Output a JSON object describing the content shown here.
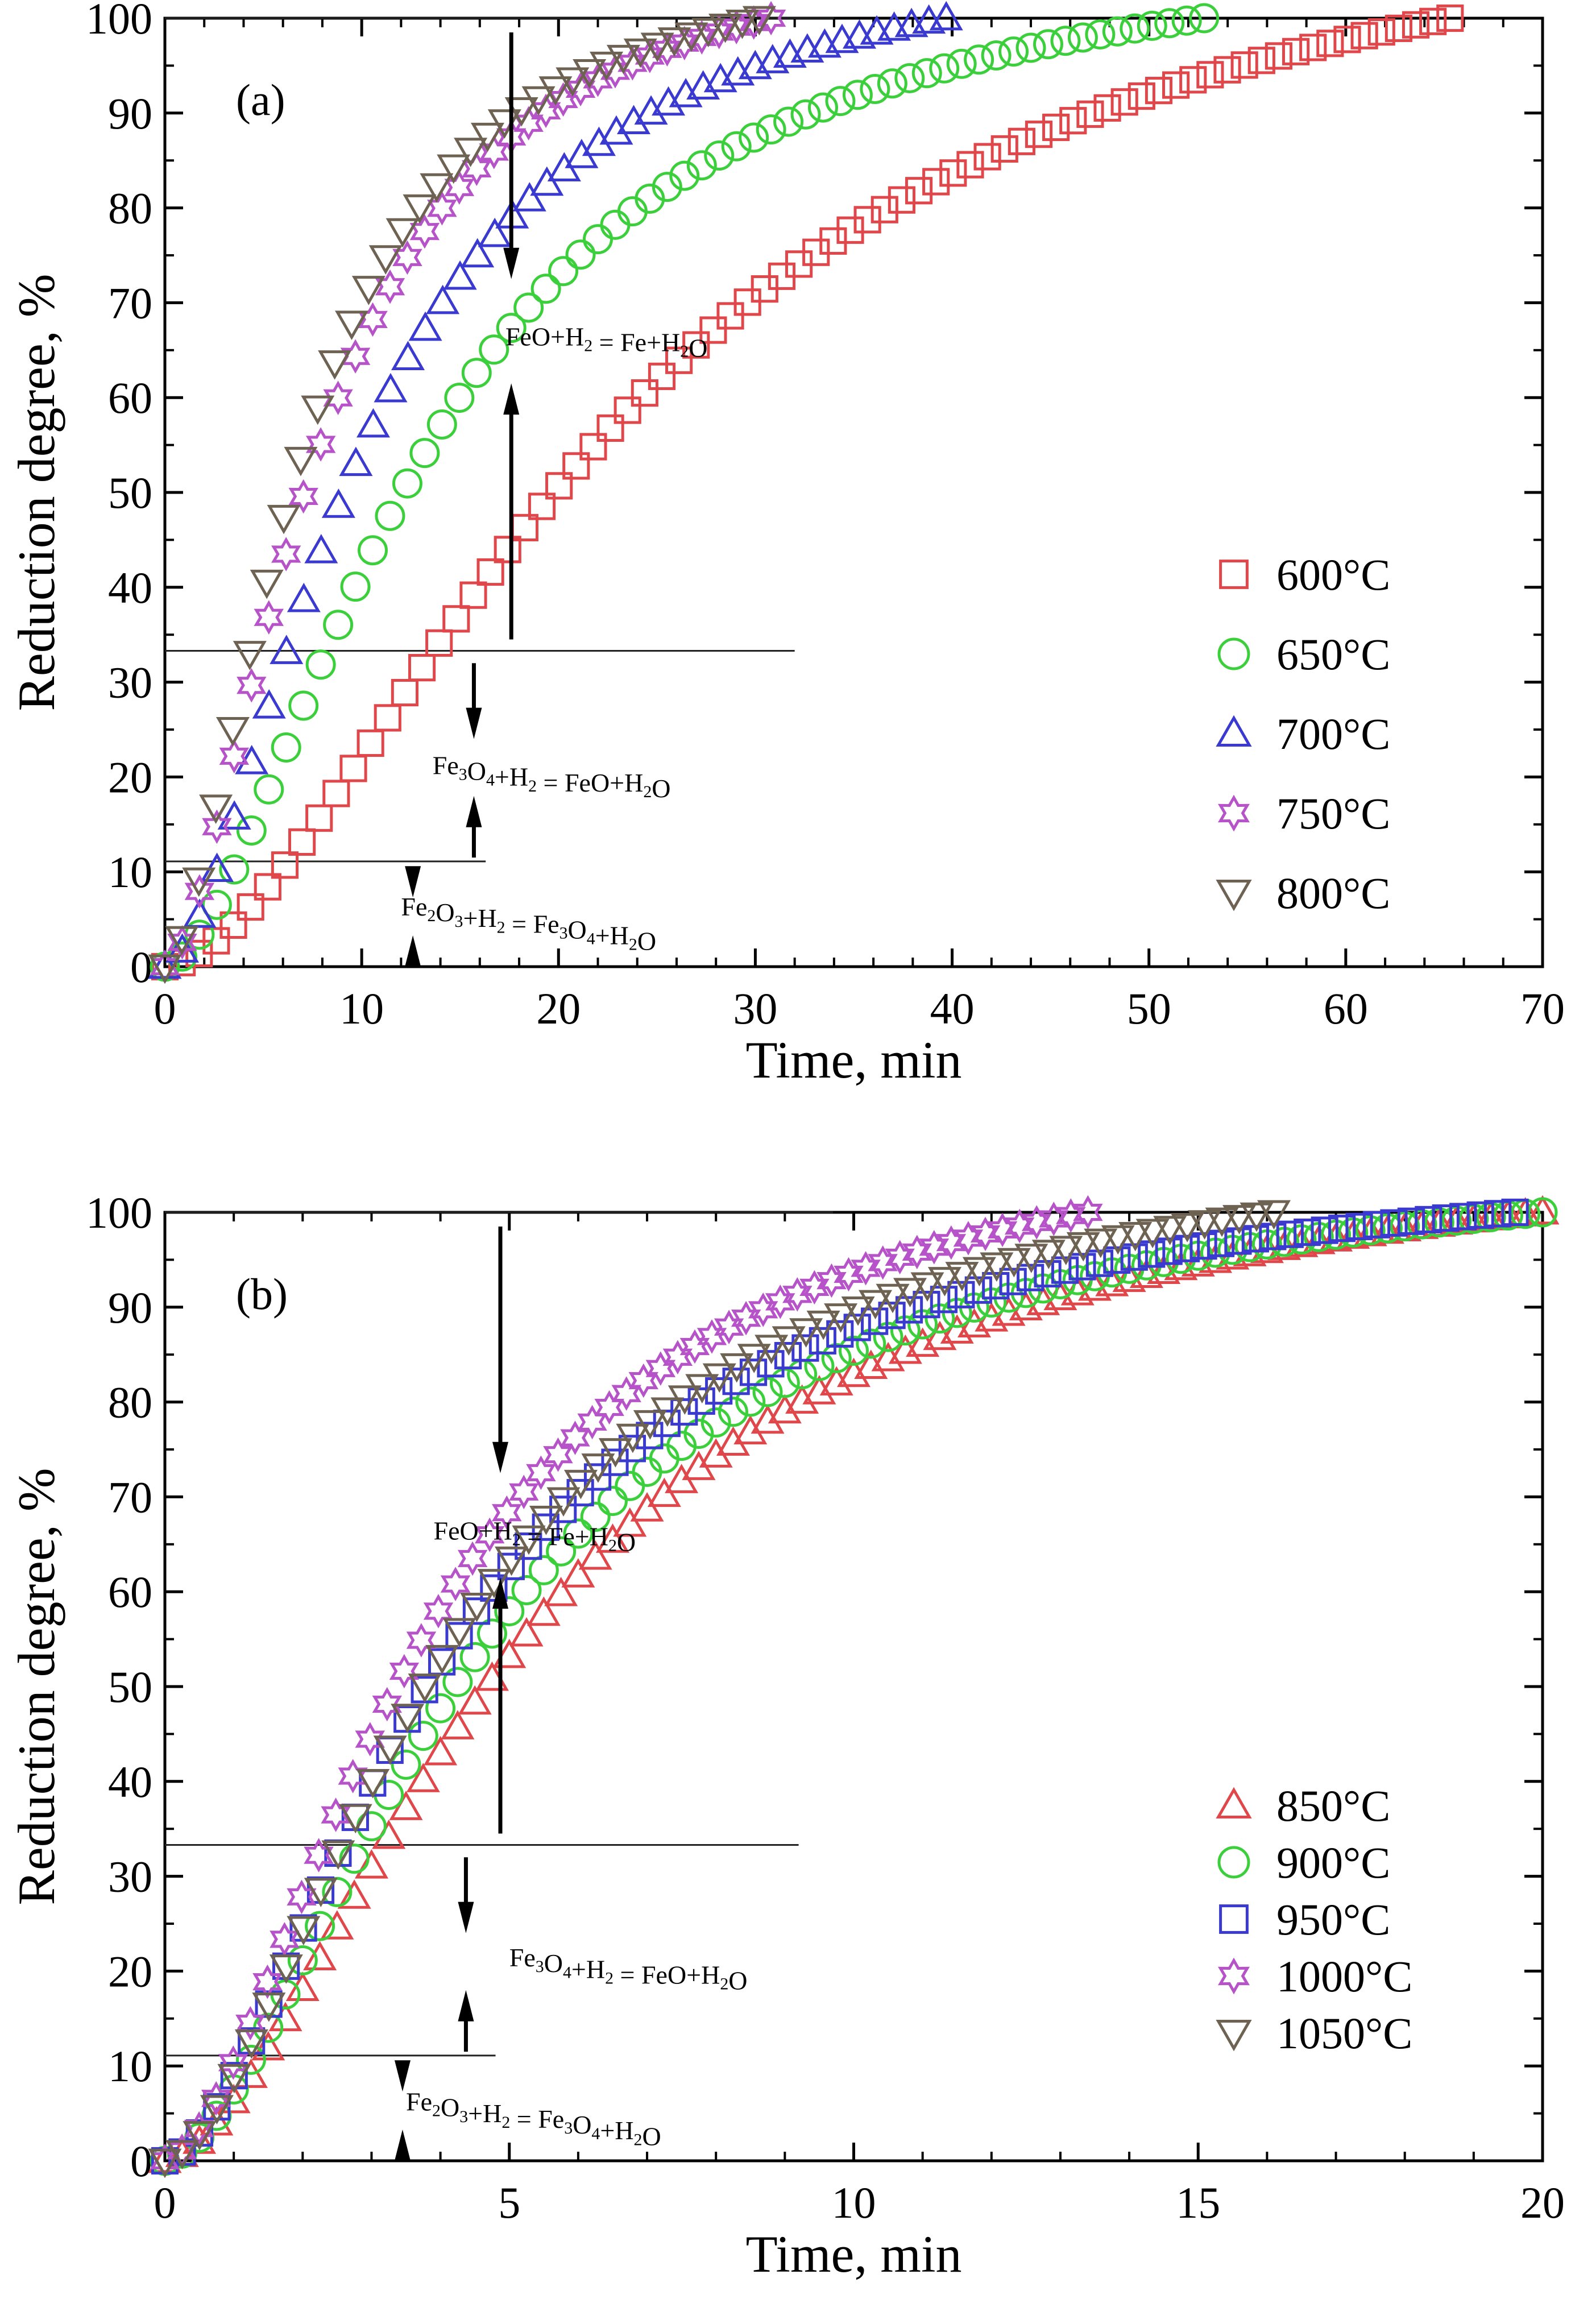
{
  "chart_data": [
    {
      "type": "scatter",
      "panel_label": "(a)",
      "xlabel": "Time, min",
      "ylabel": "Reduction degree, %",
      "xlim": [
        0,
        70
      ],
      "ylim": [
        0,
        100
      ],
      "xticks": [
        "0",
        "10",
        "20",
        "30",
        "40",
        "50",
        "60",
        "70"
      ],
      "yticks": [
        "0",
        "10",
        "20",
        "30",
        "40",
        "50",
        "60",
        "70",
        "80",
        "90",
        "100"
      ],
      "stage_lines": [
        {
          "y": 100,
          "x_end": 34.0
        },
        {
          "y": 33.3,
          "x_end": 32.0
        },
        {
          "y": 11.1,
          "x_end": 16.3
        }
      ],
      "annotations": [
        {
          "parts": [
            [
              "FeO+H",
              0
            ],
            [
              "2",
              1
            ],
            [
              " = Fe+H",
              0
            ],
            [
              "2",
              1
            ],
            [
              "O",
              0
            ]
          ],
          "x": 17.3,
          "y": 65.5
        },
        {
          "parts": [
            [
              "Fe",
              0
            ],
            [
              "3",
              1
            ],
            [
              "O",
              0
            ],
            [
              "4",
              1
            ],
            [
              "+H",
              0
            ],
            [
              "2",
              1
            ],
            [
              " = FeO+H",
              0
            ],
            [
              "2",
              1
            ],
            [
              "O",
              0
            ]
          ],
          "x": 13.6,
          "y": 20.3
        },
        {
          "parts": [
            [
              "Fe",
              0
            ],
            [
              "2",
              1
            ],
            [
              "O",
              0
            ],
            [
              "3",
              1
            ],
            [
              "+H",
              0
            ],
            [
              "2",
              1
            ],
            [
              " = Fe",
              0
            ],
            [
              "3",
              1
            ],
            [
              "O",
              0
            ],
            [
              "4",
              1
            ],
            [
              "+H",
              0
            ],
            [
              "2",
              1
            ],
            [
              "O",
              0
            ]
          ],
          "x": 12.0,
          "y": 5.4
        }
      ],
      "arrows": [
        {
          "x": 17.6,
          "from": 98.5,
          "to": 72.5
        },
        {
          "x": 17.6,
          "from": 34.5,
          "to": 61.5
        },
        {
          "x": 15.7,
          "from": 32.0,
          "to": 24.0
        },
        {
          "x": 15.7,
          "from": 11.5,
          "to": 18.0
        },
        {
          "x": 12.6,
          "from": 10.3,
          "to": 7.3
        },
        {
          "x": 12.6,
          "from": 0.3,
          "to": 3.3
        }
      ],
      "series": [
        {
          "name": "600°C",
          "marker": "square",
          "color": "#e0474a",
          "x_end": 65.3,
          "t_half": 23.6
        },
        {
          "name": "650°C",
          "marker": "circle",
          "color": "#3ccf3c",
          "x_end": 52.8,
          "t_half": 13.4
        },
        {
          "name": "700°C",
          "marker": "triangle-up",
          "color": "#3a3ad0",
          "x_end": 39.7,
          "t_half": 10.1
        },
        {
          "name": "750°C",
          "marker": "star",
          "color": "#b653c8",
          "x_end": 30.8,
          "t_half": 7.9
        },
        {
          "name": "800°C",
          "marker": "triangle-down",
          "color": "#6e6252",
          "x_end": 30.2,
          "t_half": 7.0
        }
      ]
    },
    {
      "type": "scatter",
      "panel_label": "(b)",
      "xlabel": "Time, min",
      "ylabel": "Reduction degree, %",
      "xlim": [
        0,
        20
      ],
      "ylim": [
        0,
        100
      ],
      "xticks": [
        "0",
        "5",
        "10",
        "15",
        "20"
      ],
      "yticks": [
        "0",
        "10",
        "20",
        "30",
        "40",
        "50",
        "60",
        "70",
        "80",
        "90",
        "100"
      ],
      "stage_lines": [
        {
          "y": 100,
          "x_end": 9.7
        },
        {
          "y": 33.3,
          "x_end": 9.2
        },
        {
          "y": 11.1,
          "x_end": 4.8
        }
      ],
      "annotations": [
        {
          "parts": [
            [
              "FeO+H",
              0
            ],
            [
              "2",
              1
            ],
            [
              " = Fe+H",
              0
            ],
            [
              "2",
              1
            ],
            [
              "O",
              0
            ]
          ],
          "x": 3.9,
          "y": 65.5
        },
        {
          "parts": [
            [
              "Fe",
              0
            ],
            [
              "3",
              1
            ],
            [
              "O",
              0
            ],
            [
              "4",
              1
            ],
            [
              "+H",
              0
            ],
            [
              "2",
              1
            ],
            [
              " = FeO+H",
              0
            ],
            [
              "2",
              1
            ],
            [
              "O",
              0
            ]
          ],
          "x": 5.0,
          "y": 20.5
        },
        {
          "parts": [
            [
              "Fe",
              0
            ],
            [
              "2",
              1
            ],
            [
              "O",
              0
            ],
            [
              "3",
              1
            ],
            [
              "+H",
              0
            ],
            [
              "2",
              1
            ],
            [
              " = Fe",
              0
            ],
            [
              "3",
              1
            ],
            [
              "O",
              0
            ],
            [
              "4",
              1
            ],
            [
              "+H",
              0
            ],
            [
              "2",
              1
            ],
            [
              "O",
              0
            ]
          ],
          "x": 3.5,
          "y": 5.3
        }
      ],
      "arrows": [
        {
          "x": 4.87,
          "from": 98.5,
          "to": 72.5
        },
        {
          "x": 4.87,
          "from": 34.5,
          "to": 61.5
        },
        {
          "x": 4.37,
          "from": 32.0,
          "to": 24.0
        },
        {
          "x": 4.37,
          "from": 11.5,
          "to": 18.0
        },
        {
          "x": 3.45,
          "from": 10.3,
          "to": 7.3
        },
        {
          "x": 3.45,
          "from": 0.3,
          "to": 3.3
        }
      ],
      "series": [
        {
          "name": "850°C",
          "marker": "triangle-up",
          "color": "#e0474a",
          "x_end": 20.0,
          "t_half": 5.2
        },
        {
          "name": "900°C",
          "marker": "circle",
          "color": "#3ccf3c",
          "x_end": 20.0,
          "t_half": 4.6
        },
        {
          "name": "950°C",
          "marker": "square",
          "color": "#3a3ad0",
          "x_end": 19.6,
          "t_half": 4.1
        },
        {
          "name": "1000°C",
          "marker": "star",
          "color": "#b653c8",
          "x_end": 13.4,
          "t_half": 3.8
        },
        {
          "name": "1050°C",
          "marker": "triangle-down",
          "color": "#6e6252",
          "x_end": 16.1,
          "t_half": 4.2
        }
      ]
    }
  ]
}
